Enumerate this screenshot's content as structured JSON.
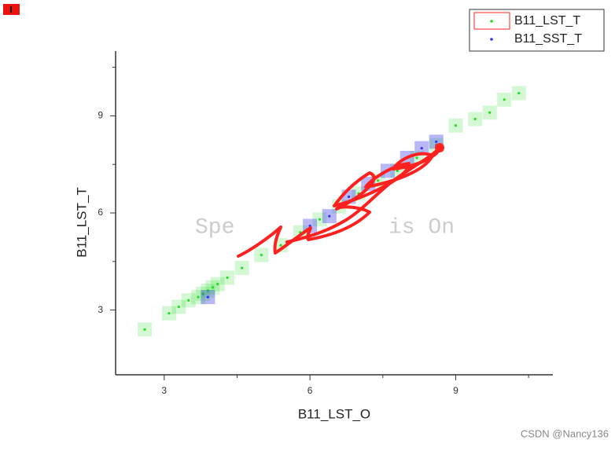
{
  "chart_data": {
    "type": "scatter",
    "xlabel": "B11_LST_O",
    "ylabel": "B11_LST_T",
    "xlim": [
      2,
      11
    ],
    "ylim": [
      1,
      11
    ],
    "xticks": [
      3,
      6,
      9
    ],
    "yticks": [
      3,
      6,
      9
    ],
    "xminorticks": [
      4.5,
      7.5,
      10.5
    ],
    "yminorticks": [
      4.5,
      7.5,
      10.5
    ],
    "legend": "upper right",
    "series": [
      {
        "name": "B11_LST_T",
        "color": "#22dd22",
        "x": [
          2.6,
          3.1,
          3.3,
          3.5,
          3.7,
          3.8,
          3.9,
          4.0,
          4.1,
          4.3,
          4.6,
          5.0,
          5.4,
          5.8,
          6.2,
          6.6,
          7.0,
          7.4,
          7.8,
          8.2,
          8.6,
          9.0,
          9.4,
          9.7,
          10.0,
          10.3
        ],
        "values": [
          2.4,
          2.9,
          3.1,
          3.3,
          3.4,
          3.5,
          3.6,
          3.7,
          3.8,
          4.0,
          4.3,
          4.7,
          5.0,
          5.4,
          5.8,
          6.2,
          6.6,
          7.0,
          7.3,
          7.7,
          8.1,
          8.7,
          8.9,
          9.1,
          9.5,
          9.7
        ]
      },
      {
        "name": "B11_SST_T",
        "color": "#3333ee",
        "x": [
          3.9,
          6.0,
          6.4,
          6.8,
          7.2,
          7.6,
          8.0,
          8.3,
          8.6
        ],
        "values": [
          3.4,
          5.6,
          5.9,
          6.5,
          6.9,
          7.3,
          7.7,
          8.0,
          8.2
        ]
      }
    ],
    "overlay_texts": [
      "Spe",
      "is On"
    ],
    "watermark": "CSDN @Nancy136"
  }
}
